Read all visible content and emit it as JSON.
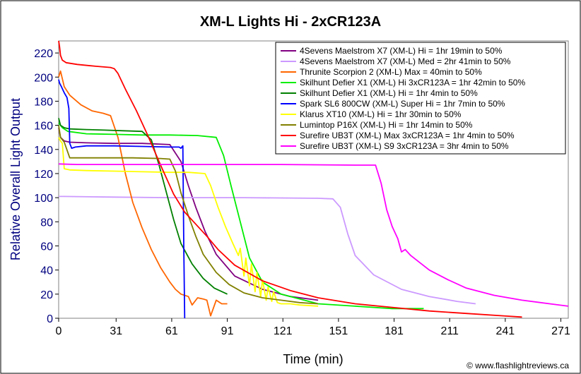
{
  "chart_data": {
    "type": "line",
    "title": "XM-L Lights Hi - 2xCR123A",
    "xlabel": "Time (min)",
    "ylabel": "Relative Overall Light Output",
    "xlim": [
      0,
      275
    ],
    "ylim": [
      0,
      230
    ],
    "xticks": [
      0,
      31,
      61,
      91,
      121,
      151,
      181,
      211,
      241,
      271
    ],
    "yticks": [
      0,
      20,
      40,
      60,
      80,
      100,
      120,
      140,
      160,
      180,
      200,
      220
    ],
    "grid": false,
    "legend_position": "top-right",
    "credit": "© www.flashlightreviews.ca",
    "series": [
      {
        "name": "4Sevens Maelstrom X7 (XM-L) Hi = 1hr 19min to 50%",
        "color": "#800080",
        "x": [
          0,
          1,
          3,
          6,
          15,
          30,
          45,
          60,
          66,
          70,
          74,
          79,
          85,
          95,
          110,
          125,
          140
        ],
        "y": [
          158,
          150,
          147,
          146,
          145.5,
          145,
          145,
          144,
          130,
          110,
          92,
          72,
          53,
          35,
          24,
          18,
          15
        ]
      },
      {
        "name": "4Sevens Maelstrom X7 (XM-L) Med = 2hr 41min to 50%",
        "color": "#cc99ff",
        "x": [
          0,
          3,
          30,
          60,
          100,
          140,
          148,
          152,
          156,
          160,
          170,
          185,
          200,
          215,
          225
        ],
        "y": [
          101,
          101,
          100.5,
          100,
          100,
          99.5,
          99,
          92,
          70,
          52,
          36,
          24,
          18,
          14,
          12
        ]
      },
      {
        "name": "Thrunite Scorpion 2 (XM-L) Max = 40min to 50%",
        "color": "#ff6600",
        "x": [
          0,
          1,
          3,
          6,
          12,
          18,
          24,
          28,
          32,
          36,
          40,
          45,
          50,
          55,
          60,
          63,
          66,
          70,
          72,
          75,
          78,
          80,
          82,
          85,
          88,
          91
        ],
        "y": [
          200,
          205,
          192,
          185,
          177,
          172,
          170,
          168,
          150,
          120,
          96,
          75,
          57,
          42,
          30,
          24,
          20,
          18,
          11,
          17,
          16,
          15,
          2,
          15,
          12,
          12
        ]
      },
      {
        "name": "Skilhunt Defier X1 (XM-L) Hi 3xCR123A = 1hr 42min to 50%",
        "color": "#00ee00",
        "x": [
          0,
          2,
          5,
          15,
          30,
          45,
          60,
          75,
          85,
          89,
          93,
          98,
          103,
          110,
          120,
          140,
          160,
          180,
          197
        ],
        "y": [
          162,
          158,
          155,
          153,
          152.5,
          152,
          152,
          151.5,
          150,
          135,
          110,
          80,
          50,
          30,
          20,
          12,
          10,
          8,
          8
        ]
      },
      {
        "name": "Skilhunt Defier X1 (XM-L) Hi = 1hr 4min to 50%",
        "color": "#008000",
        "x": [
          0,
          1,
          3,
          6,
          15,
          25,
          35,
          45,
          50,
          54,
          58,
          62,
          66,
          72,
          78,
          84,
          91
        ],
        "y": [
          166,
          160,
          158,
          157,
          156.5,
          156,
          155.5,
          155,
          148,
          128,
          105,
          82,
          62,
          45,
          33,
          25,
          20
        ]
      },
      {
        "name": "Spark SL6 800CW (XM-L) Super Hi = 1hr 7min to 50%",
        "color": "#0000ff",
        "x": [
          0,
          0.5,
          1.5,
          3,
          4.5,
          5.5,
          6,
          7,
          9,
          15,
          30,
          45,
          60,
          65,
          66,
          67,
          67.5,
          68
        ],
        "y": [
          198,
          195,
          192,
          187,
          183,
          174,
          145,
          141,
          142,
          143,
          143,
          142.5,
          142,
          142,
          141,
          143,
          60,
          0
        ]
      },
      {
        "name": "Klarus XT10 (XM-L) Hi = 1hr 30min to 50%",
        "color": "#ffff00",
        "x": [
          0,
          1,
          2,
          3,
          6,
          15,
          30,
          45,
          60,
          70,
          79,
          82,
          86,
          90,
          94,
          97,
          98,
          100,
          101,
          103,
          104,
          106,
          107,
          109,
          110,
          112,
          113,
          115,
          116,
          118,
          120,
          125,
          130,
          140
        ],
        "y": [
          150,
          147,
          145,
          124,
          123,
          122.5,
          122,
          121.5,
          121,
          121,
          120,
          110,
          92,
          76,
          62,
          52,
          58,
          35,
          50,
          27,
          45,
          22,
          38,
          18,
          32,
          15,
          26,
          14,
          22,
          13,
          12,
          12,
          11,
          10
        ]
      },
      {
        "name": "Lumintop P16X (XM-L) Hi = 1hr 14min to 50%",
        "color": "#808000",
        "x": [
          0,
          1,
          3,
          6,
          20,
          40,
          55,
          60,
          63,
          66,
          70,
          74,
          78,
          85,
          92,
          100,
          110,
          120,
          130,
          140
        ],
        "y": [
          160,
          150,
          146,
          133,
          133,
          133,
          132.5,
          132,
          122,
          104,
          85,
          68,
          53,
          38,
          28,
          21,
          17,
          15,
          13,
          12
        ]
      },
      {
        "name": "Surefire UB3T (XM-L) Max 3xCR123A = 1hr 4min to 50%",
        "color": "#ff0000",
        "x": [
          0,
          0.5,
          1,
          2,
          4,
          10,
          20,
          28,
          30,
          32,
          36,
          42,
          48,
          55,
          62,
          68,
          74,
          80,
          86,
          95,
          110,
          125,
          140,
          160,
          180,
          200,
          220,
          240,
          250
        ],
        "y": [
          230,
          225,
          218,
          214,
          212,
          210.5,
          209,
          208,
          207,
          203,
          190,
          172,
          152,
          127,
          103,
          88,
          78,
          68,
          57,
          44,
          31,
          23,
          17,
          12,
          9,
          6,
          4,
          2,
          1
        ]
      },
      {
        "name": "Surefire UB3T (XM-L) S9 3xCR123A = 3hr 4min to 50%",
        "color": "#ff00ff",
        "x": [
          0,
          10,
          40,
          80,
          120,
          160,
          168,
          171,
          174,
          177,
          180,
          183,
          185,
          187,
          190,
          195,
          200,
          210,
          220,
          235,
          250,
          265,
          275
        ],
        "y": [
          128,
          127.5,
          127.5,
          127.5,
          127.5,
          127,
          127,
          127,
          112,
          90,
          76,
          66,
          55,
          57,
          52,
          46,
          40,
          32,
          25,
          19,
          15,
          12,
          10
        ]
      }
    ]
  }
}
